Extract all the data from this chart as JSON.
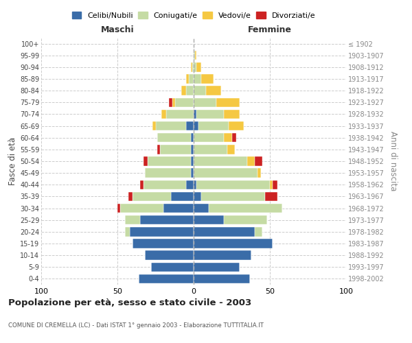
{
  "age_groups": [
    "0-4",
    "5-9",
    "10-14",
    "15-19",
    "20-24",
    "25-29",
    "30-34",
    "35-39",
    "40-44",
    "45-49",
    "50-54",
    "55-59",
    "60-64",
    "65-69",
    "70-74",
    "75-79",
    "80-84",
    "85-89",
    "90-94",
    "95-99",
    "100+"
  ],
  "birth_years": [
    "1998-2002",
    "1993-1997",
    "1988-1992",
    "1983-1987",
    "1978-1982",
    "1973-1977",
    "1968-1972",
    "1963-1967",
    "1958-1962",
    "1953-1957",
    "1948-1952",
    "1943-1947",
    "1938-1942",
    "1933-1937",
    "1928-1932",
    "1923-1927",
    "1918-1922",
    "1913-1917",
    "1908-1912",
    "1903-1907",
    "≤ 1902"
  ],
  "colors": {
    "celibe": "#3a6ca8",
    "coniugato": "#c5dba4",
    "vedovo": "#f5c842",
    "divorziato": "#cc2222"
  },
  "male_celibe": [
    36,
    28,
    32,
    40,
    42,
    35,
    20,
    15,
    5,
    2,
    2,
    2,
    2,
    5,
    0,
    0,
    0,
    0,
    0,
    0,
    0
  ],
  "male_coniugato": [
    0,
    0,
    0,
    0,
    3,
    10,
    28,
    25,
    28,
    30,
    28,
    20,
    22,
    20,
    18,
    12,
    5,
    3,
    1,
    0,
    0
  ],
  "male_vedovo": [
    0,
    0,
    0,
    0,
    0,
    0,
    0,
    0,
    0,
    0,
    0,
    0,
    0,
    2,
    3,
    2,
    3,
    2,
    1,
    0,
    0
  ],
  "male_divorziato": [
    0,
    0,
    0,
    0,
    0,
    0,
    2,
    3,
    2,
    0,
    3,
    2,
    0,
    0,
    0,
    2,
    0,
    0,
    0,
    0,
    0
  ],
  "female_nubile": [
    37,
    30,
    38,
    52,
    40,
    20,
    10,
    5,
    2,
    0,
    0,
    0,
    0,
    3,
    2,
    0,
    0,
    0,
    0,
    0,
    0
  ],
  "female_coniugata": [
    0,
    0,
    0,
    0,
    5,
    28,
    48,
    42,
    48,
    42,
    35,
    22,
    20,
    20,
    18,
    15,
    8,
    5,
    2,
    1,
    0
  ],
  "female_vedova": [
    0,
    0,
    0,
    0,
    0,
    0,
    0,
    0,
    2,
    2,
    5,
    5,
    5,
    10,
    10,
    15,
    10,
    8,
    3,
    1,
    0
  ],
  "female_divorziata": [
    0,
    0,
    0,
    0,
    0,
    0,
    0,
    8,
    3,
    0,
    5,
    0,
    3,
    0,
    0,
    0,
    0,
    0,
    0,
    0,
    0
  ],
  "xlim": 100,
  "title": "Popolazione per età, sesso e stato civile - 2003",
  "subtitle": "COMUNE DI CREMELLA (LC) - Dati ISTAT 1° gennaio 2003 - Elaborazione TUTTITALIA.IT",
  "ylabel_left": "Fasce di età",
  "ylabel_right": "Anni di nascita",
  "label_maschi": "Maschi",
  "label_femmine": "Femmine",
  "legend_labels": [
    "Celibi/Nubili",
    "Coniugati/e",
    "Vedovi/e",
    "Divorziati/e"
  ],
  "bg_color": "#ffffff",
  "grid_color": "#cccccc",
  "center_line_color": "#aaaaaa"
}
